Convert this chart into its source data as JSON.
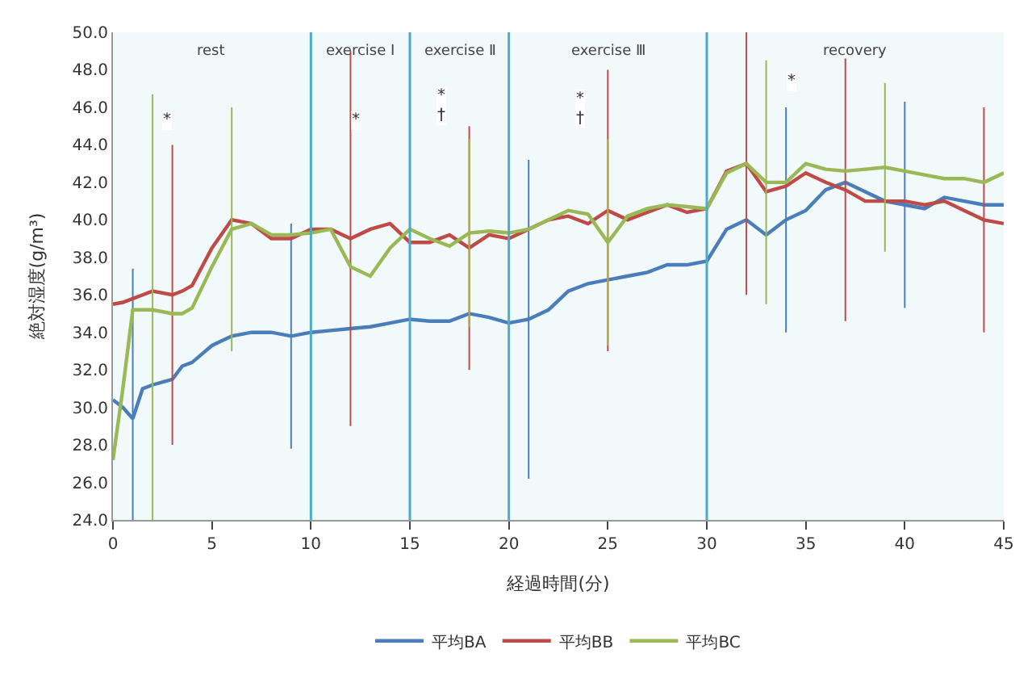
{
  "chart_data": {
    "type": "line",
    "xlabel": "経過時間(分)",
    "ylabel": "絶対湿度(g/m³)",
    "xlim": [
      0,
      45
    ],
    "xticks": [
      0,
      5,
      10,
      15,
      20,
      25,
      30,
      35,
      40,
      45
    ],
    "ylim": [
      24,
      50
    ],
    "yticks": [
      {
        "value": 24,
        "label": "24.0"
      },
      {
        "value": 26,
        "label": "26.0"
      },
      {
        "value": 28,
        "label": "28.0"
      },
      {
        "value": 30,
        "label": "30.0"
      },
      {
        "value": 32,
        "label": "32.0"
      },
      {
        "value": 34,
        "label": "34.0"
      },
      {
        "value": 36,
        "label": "36.0"
      },
      {
        "value": 38,
        "label": "38.0"
      },
      {
        "value": 40,
        "label": "40.0"
      },
      {
        "value": 42,
        "label": "42.0"
      },
      {
        "value": 44,
        "label": "44.0"
      },
      {
        "value": 46,
        "label": "46.0"
      },
      {
        "value": 48,
        "label": "48.0"
      },
      {
        "value": 50,
        "label": "50.0"
      }
    ],
    "x": [
      0,
      0.5,
      1,
      1.5,
      2,
      3,
      3.5,
      4,
      5,
      6,
      7,
      8,
      9,
      10,
      11,
      12,
      13,
      14,
      15,
      16,
      17,
      18,
      19,
      20,
      21,
      22,
      23,
      24,
      25,
      26,
      27,
      28,
      29,
      30,
      31,
      32,
      33,
      34,
      35,
      36,
      37,
      38,
      39,
      40,
      41,
      42,
      43,
      44,
      45
    ],
    "series": [
      {
        "name": "平均BA",
        "color": "#4a7ebb",
        "values": [
          30.4,
          30.0,
          29.4,
          31.0,
          31.2,
          31.5,
          32.2,
          32.4,
          33.3,
          33.8,
          34.0,
          34.0,
          33.8,
          34.0,
          34.1,
          34.2,
          34.3,
          34.5,
          34.7,
          34.6,
          34.6,
          35.0,
          34.8,
          34.5,
          34.7,
          35.2,
          36.2,
          36.6,
          36.8,
          37.0,
          37.2,
          37.6,
          37.6,
          37.8,
          39.5,
          40.0,
          39.2,
          40.0,
          40.5,
          41.6,
          42.0,
          41.5,
          41.0,
          40.8,
          40.6,
          41.2,
          41.0,
          40.8,
          40.8
        ],
        "errors": [
          null,
          null,
          8.0,
          null,
          null,
          null,
          null,
          null,
          null,
          null,
          null,
          null,
          6.0,
          null,
          null,
          null,
          null,
          null,
          8.0,
          null,
          null,
          null,
          null,
          null,
          8.5,
          null,
          null,
          null,
          null,
          null,
          null,
          null,
          null,
          7.5,
          null,
          null,
          null,
          6.0,
          null,
          null,
          null,
          null,
          null,
          5.5,
          null,
          null,
          null,
          null,
          null
        ]
      },
      {
        "name": "平均BB",
        "color": "#be4b48",
        "values": [
          35.5,
          35.6,
          35.8,
          36.0,
          36.2,
          36.0,
          36.2,
          36.5,
          38.5,
          40.0,
          39.8,
          39.0,
          39.0,
          39.5,
          39.5,
          39.0,
          39.5,
          39.8,
          38.8,
          38.8,
          39.2,
          38.5,
          39.2,
          39.0,
          39.5,
          40.0,
          40.2,
          39.8,
          40.5,
          40.0,
          40.4,
          40.8,
          40.4,
          40.6,
          42.6,
          43.0,
          41.5,
          41.8,
          42.5,
          42.0,
          41.6,
          41.0,
          41.0,
          41.0,
          40.8,
          41.0,
          40.5,
          40.0,
          39.8
        ],
        "errors": [
          null,
          null,
          null,
          null,
          null,
          8.0,
          null,
          null,
          null,
          null,
          null,
          null,
          null,
          null,
          null,
          10.0,
          null,
          null,
          null,
          null,
          null,
          6.5,
          null,
          null,
          null,
          null,
          null,
          null,
          7.5,
          null,
          null,
          null,
          null,
          null,
          null,
          7.0,
          null,
          null,
          null,
          null,
          7.0,
          null,
          null,
          null,
          null,
          null,
          null,
          6.0,
          null
        ]
      },
      {
        "name": "平均BC",
        "color": "#98b954",
        "values": [
          27.2,
          31.0,
          35.2,
          35.2,
          35.2,
          35.0,
          35.0,
          35.3,
          37.5,
          39.5,
          39.8,
          39.2,
          39.2,
          39.3,
          39.5,
          37.5,
          37.0,
          38.5,
          39.5,
          39.0,
          38.6,
          39.3,
          39.4,
          39.3,
          39.5,
          40.0,
          40.5,
          40.3,
          38.8,
          40.2,
          40.6,
          40.8,
          40.7,
          40.6,
          42.5,
          43.0,
          42.0,
          42.0,
          43.0,
          42.7,
          42.6,
          42.7,
          42.8,
          42.6,
          42.4,
          42.2,
          42.2,
          42.0,
          42.5
        ],
        "errors": [
          null,
          null,
          null,
          null,
          11.5,
          null,
          null,
          null,
          null,
          6.5,
          null,
          null,
          null,
          null,
          null,
          null,
          null,
          null,
          null,
          null,
          null,
          5.0,
          null,
          null,
          null,
          null,
          null,
          null,
          5.5,
          null,
          null,
          null,
          null,
          null,
          null,
          null,
          6.5,
          null,
          null,
          null,
          null,
          null,
          4.5,
          null,
          null,
          null,
          null,
          null,
          null
        ]
      }
    ],
    "ref_lines": [
      {
        "axis": "x",
        "value": 10,
        "color": "#4bacc6"
      },
      {
        "axis": "x",
        "value": 15,
        "color": "#4bacc6"
      },
      {
        "axis": "x",
        "value": 20,
        "color": "#4bacc6"
      },
      {
        "axis": "x",
        "value": 30,
        "color": "#4bacc6"
      }
    ],
    "bands": [
      {
        "axis": "x",
        "from": 0,
        "to": 10,
        "label": "rest",
        "color": "#4bacc6"
      },
      {
        "axis": "x",
        "from": 10,
        "to": 15,
        "label": "exercise Ⅰ",
        "color": "#4bacc6"
      },
      {
        "axis": "x",
        "from": 15,
        "to": 20,
        "label": "exercise Ⅱ",
        "color": "#4bacc6"
      },
      {
        "axis": "x",
        "from": 20,
        "to": 30,
        "label": "exercise Ⅲ",
        "color": "#4bacc6"
      },
      {
        "axis": "x",
        "from": 30,
        "to": 45,
        "label": "recovery",
        "color": "#4bacc6"
      }
    ],
    "annotations": [
      "*",
      "*",
      "*",
      "†",
      "*",
      "†",
      "*"
    ],
    "grid": false,
    "legend": "bottom",
    "marker": "none",
    "line_style": "solid"
  }
}
